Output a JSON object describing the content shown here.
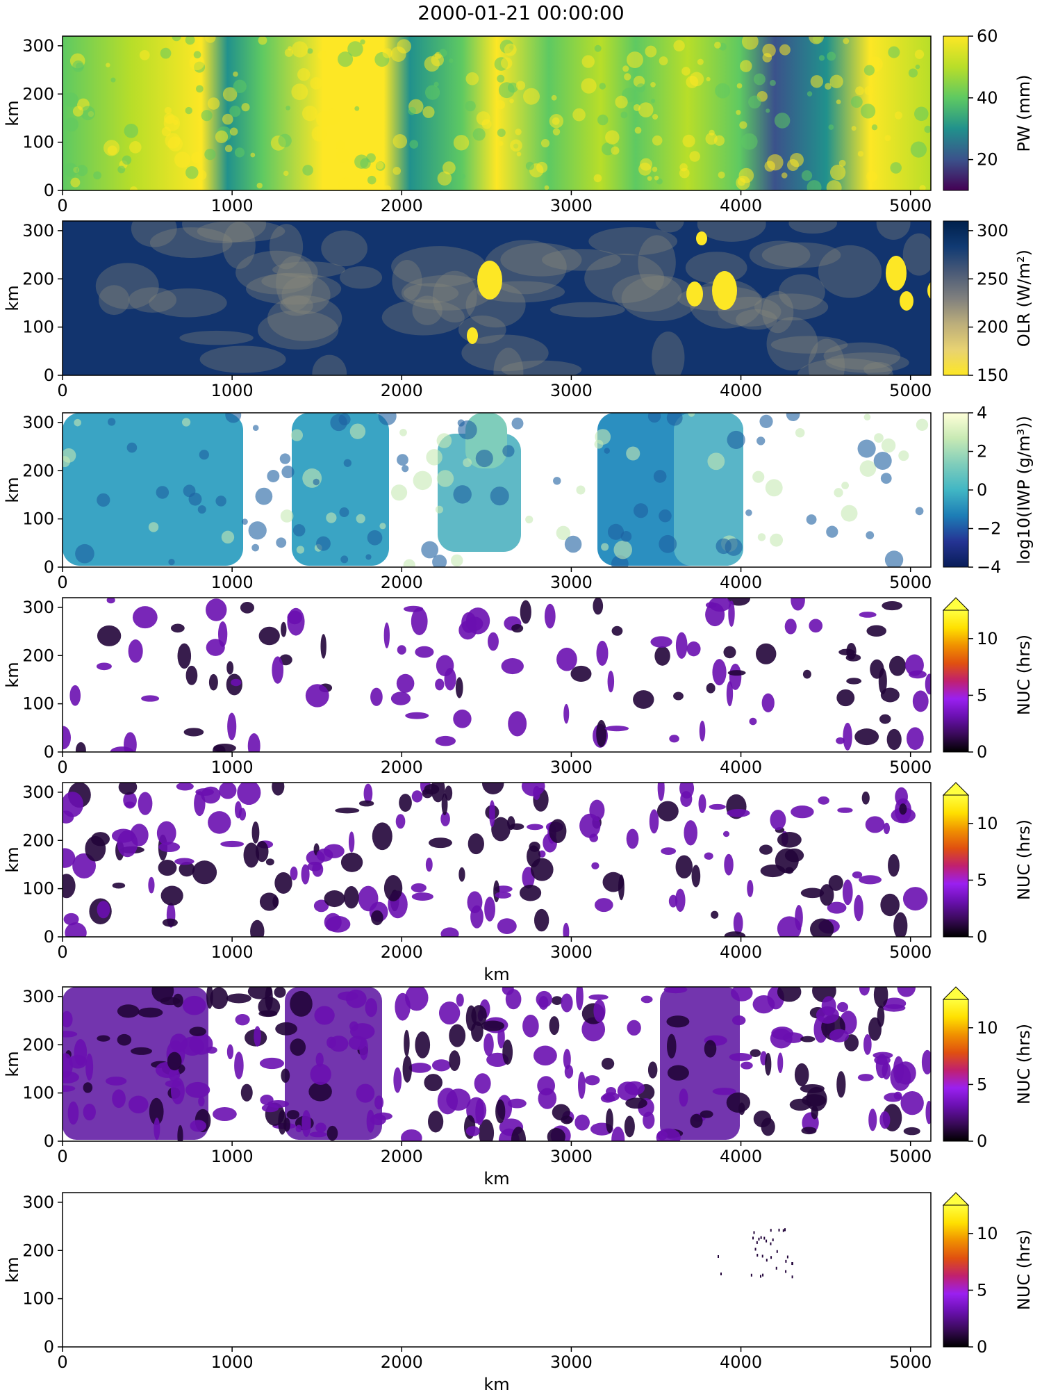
{
  "title": "2000-01-21 00:00:00",
  "chart_data": [
    {
      "type": "heatmap",
      "ylabel": "km",
      "xlabel": "",
      "xlim": [
        0,
        5120
      ],
      "ylim": [
        0,
        320
      ],
      "xticks": [
        "0",
        "1000",
        "2000",
        "3000",
        "4000",
        "5000"
      ],
      "yticks": [
        "0",
        "100",
        "200",
        "300"
      ],
      "colorbar": {
        "label": "PW (mm)",
        "range": [
          10,
          60
        ],
        "ticks": [
          "20",
          "40",
          "60"
        ],
        "colormap": "viridis",
        "extend": false
      },
      "field": "pw"
    },
    {
      "type": "heatmap",
      "ylabel": "km",
      "xlabel": "",
      "xlim": [
        0,
        5120
      ],
      "ylim": [
        0,
        320
      ],
      "xticks": [
        "0",
        "1000",
        "2000",
        "3000",
        "4000",
        "5000"
      ],
      "yticks": [
        "0",
        "100",
        "200",
        "300"
      ],
      "colorbar": {
        "label": "OLR (W/m²)",
        "range": [
          150,
          310
        ],
        "ticks": [
          "150",
          "200",
          "250",
          "300"
        ],
        "colormap": "cividis_r",
        "extend": false
      },
      "field": "olr"
    },
    {
      "type": "heatmap",
      "ylabel": "km",
      "xlabel": "",
      "xlim": [
        0,
        5120
      ],
      "ylim": [
        0,
        320
      ],
      "xticks": [
        "0",
        "1000",
        "2000",
        "3000",
        "4000",
        "5000"
      ],
      "yticks": [
        "0",
        "100",
        "200",
        "300"
      ],
      "colorbar": {
        "label": "log10(IWP (g/m³))",
        "range": [
          -4,
          4
        ],
        "ticks": [
          "−4",
          "−2",
          "0",
          "2",
          "4"
        ],
        "colormap": "YlGnBu_r",
        "extend": false
      },
      "field": "iwp"
    },
    {
      "type": "heatmap",
      "ylabel": "km",
      "xlabel": "",
      "xlim": [
        0,
        5120
      ],
      "ylim": [
        0,
        320
      ],
      "xticks": [
        "0",
        "1000",
        "2000",
        "3000",
        "4000",
        "5000"
      ],
      "yticks": [
        "0",
        "100",
        "200",
        "300"
      ],
      "colorbar": {
        "label": "NUC (hrs)",
        "range": [
          0,
          12.5
        ],
        "ticks": [
          "0",
          "5",
          "10"
        ],
        "colormap": "gnuplot",
        "extend": true
      },
      "field": "nuc1"
    },
    {
      "type": "heatmap",
      "ylabel": "km",
      "xlabel": "km",
      "xlim": [
        0,
        5120
      ],
      "ylim": [
        0,
        320
      ],
      "xticks": [
        "0",
        "1000",
        "2000",
        "3000",
        "4000",
        "5000"
      ],
      "yticks": [
        "0",
        "100",
        "200",
        "300"
      ],
      "colorbar": {
        "label": "NUC (hrs)",
        "range": [
          0,
          12.5
        ],
        "ticks": [
          "0",
          "5",
          "10"
        ],
        "colormap": "gnuplot",
        "extend": true
      },
      "field": "nuc2"
    },
    {
      "type": "heatmap",
      "ylabel": "km",
      "xlabel": "km",
      "xlim": [
        0,
        5120
      ],
      "ylim": [
        0,
        320
      ],
      "xticks": [
        "0",
        "1000",
        "2000",
        "3000",
        "4000",
        "5000"
      ],
      "yticks": [
        "0",
        "100",
        "200",
        "300"
      ],
      "colorbar": {
        "label": "NUC (hrs)",
        "range": [
          0,
          12.5
        ],
        "ticks": [
          "0",
          "5",
          "10"
        ],
        "colormap": "gnuplot",
        "extend": true
      },
      "field": "nuc3"
    },
    {
      "type": "heatmap",
      "ylabel": "km",
      "xlabel": "km",
      "xlim": [
        0,
        5120
      ],
      "ylim": [
        0,
        320
      ],
      "xticks": [
        "0",
        "1000",
        "2000",
        "3000",
        "4000",
        "5000"
      ],
      "yticks": [
        "0",
        "100",
        "200",
        "300"
      ],
      "colorbar": {
        "label": "NUC (hrs)",
        "range": [
          0,
          12.5
        ],
        "ticks": [
          "0",
          "5",
          "10"
        ],
        "colormap": "gnuplot",
        "extend": true
      },
      "field": "nuc4"
    }
  ]
}
